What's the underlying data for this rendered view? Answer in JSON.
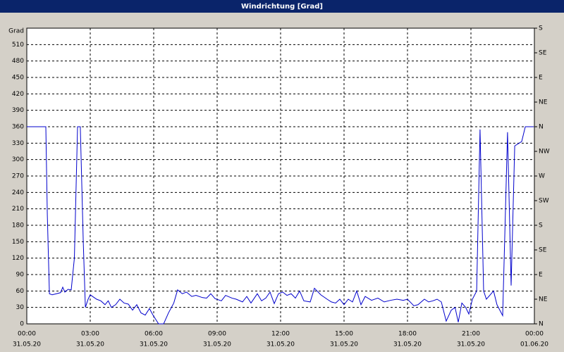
{
  "window_title": "Windrichtung [Grad]",
  "chart_data": {
    "type": "line",
    "ylabel": "Grad",
    "xlim": [
      0,
      24
    ],
    "xticks": [
      {
        "value": 0,
        "label": "00:00"
      },
      {
        "value": 3,
        "label": "03:00"
      },
      {
        "value": 6,
        "label": "06:00"
      },
      {
        "value": 9,
        "label": "09:00"
      },
      {
        "value": 12,
        "label": "12:00"
      },
      {
        "value": 15,
        "label": "15:00"
      },
      {
        "value": 18,
        "label": "18:00"
      },
      {
        "value": 21,
        "label": "21:00"
      },
      {
        "value": 24,
        "label": "00:00"
      }
    ],
    "xtick_dates": [
      "31.05.20",
      "31.05.20",
      "31.05.20",
      "31.05.20",
      "31.05.20",
      "31.05.20",
      "31.05.20",
      "31.05.20",
      "01.06.20"
    ],
    "ylim": [
      0,
      540
    ],
    "yticks": [
      0,
      30,
      60,
      90,
      120,
      150,
      180,
      210,
      240,
      270,
      300,
      330,
      360,
      390,
      420,
      450,
      480,
      510
    ],
    "y2lim": [
      0,
      540
    ],
    "y2ticks": [
      {
        "value": 0,
        "label": "N"
      },
      {
        "value": 45,
        "label": "NE"
      },
      {
        "value": 90,
        "label": "E"
      },
      {
        "value": 135,
        "label": "SE"
      },
      {
        "value": 180,
        "label": "S"
      },
      {
        "value": 225,
        "label": "SW"
      },
      {
        "value": 270,
        "label": "W"
      },
      {
        "value": 315,
        "label": "NW"
      },
      {
        "value": 360,
        "label": "N"
      },
      {
        "value": 405,
        "label": "NE"
      },
      {
        "value": 450,
        "label": "E"
      },
      {
        "value": 495,
        "label": "SE"
      },
      {
        "value": 540,
        "label": "S"
      }
    ],
    "grid": true,
    "series": [
      {
        "color": "#0000cc",
        "x": [
          0,
          0.9,
          0.97,
          1.07,
          1.2,
          1.4,
          1.6,
          1.7,
          1.8,
          1.95,
          2.1,
          2.25,
          2.4,
          2.53,
          2.67,
          2.77,
          2.9,
          3.0,
          3.3,
          3.5,
          3.7,
          3.85,
          4.0,
          4.2,
          4.4,
          4.6,
          4.8,
          5.0,
          5.2,
          5.4,
          5.6,
          5.8,
          5.95,
          6.23,
          6.47,
          6.7,
          6.95,
          7.13,
          7.35,
          7.55,
          7.8,
          8.0,
          8.3,
          8.5,
          8.7,
          8.9,
          9.2,
          9.4,
          9.7,
          9.9,
          10.2,
          10.4,
          10.6,
          10.9,
          11.1,
          11.3,
          11.5,
          11.7,
          11.9,
          12.1,
          12.3,
          12.5,
          12.7,
          12.9,
          13.1,
          13.4,
          13.6,
          13.9,
          14.2,
          14.4,
          14.6,
          14.8,
          15.0,
          15.2,
          15.4,
          15.6,
          15.8,
          16.0,
          16.3,
          16.6,
          16.9,
          17.2,
          17.5,
          17.8,
          18.0,
          18.3,
          18.5,
          18.8,
          19.0,
          19.2,
          19.4,
          19.6,
          19.83,
          20.07,
          20.25,
          20.4,
          20.57,
          20.75,
          20.9,
          21.07,
          21.27,
          21.43,
          21.6,
          21.73,
          22.07,
          22.23,
          22.5,
          22.73,
          22.9,
          23.07,
          23.4,
          23.57,
          23.97
        ],
        "values": [
          360,
          360,
          200,
          55,
          53,
          55,
          57,
          67,
          58,
          63,
          62,
          120,
          360,
          360,
          150,
          30,
          45,
          53,
          45,
          42,
          35,
          42,
          30,
          35,
          45,
          38,
          36,
          25,
          35,
          20,
          16,
          28,
          17,
          0,
          0,
          20,
          38,
          62,
          55,
          58,
          50,
          52,
          48,
          47,
          55,
          46,
          42,
          52,
          47,
          45,
          40,
          50,
          38,
          55,
          42,
          47,
          58,
          37,
          55,
          58,
          52,
          55,
          47,
          60,
          42,
          40,
          65,
          53,
          45,
          40,
          38,
          45,
          35,
          45,
          40,
          60,
          35,
          50,
          43,
          47,
          40,
          43,
          45,
          43,
          45,
          33,
          35,
          45,
          40,
          42,
          45,
          40,
          5,
          25,
          30,
          3,
          38,
          30,
          18,
          45,
          60,
          355,
          60,
          45,
          60,
          35,
          15,
          350,
          70,
          325,
          333,
          360,
          360
        ]
      }
    ]
  }
}
